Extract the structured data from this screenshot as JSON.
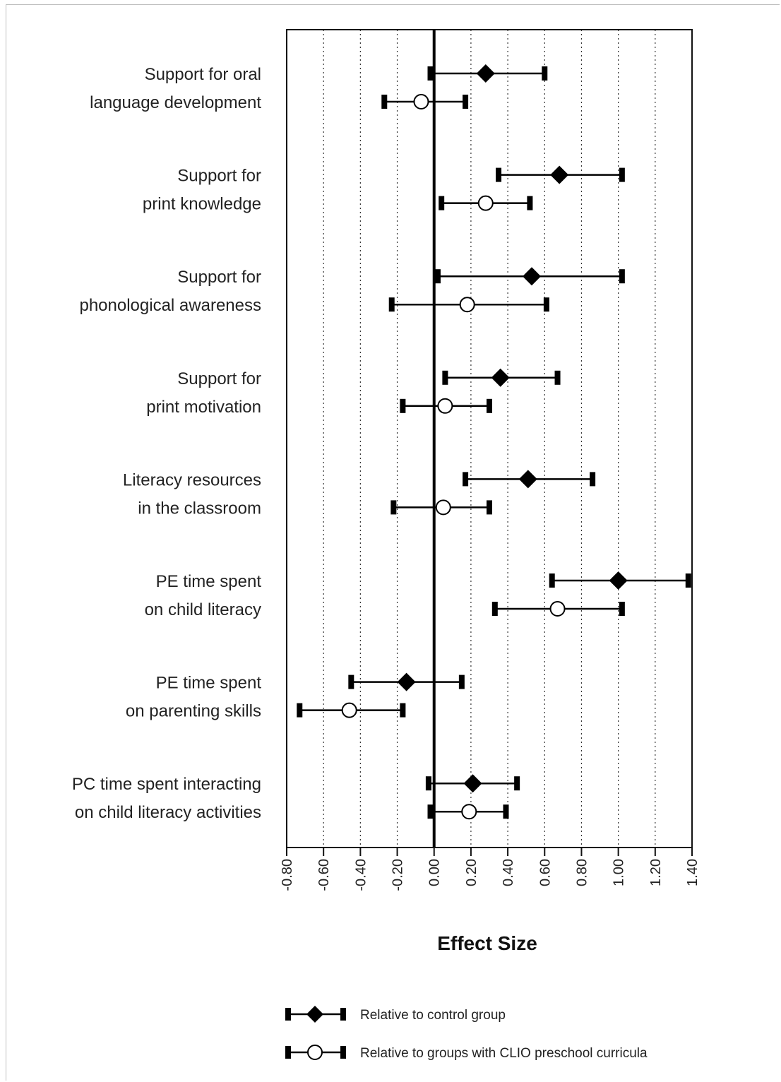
{
  "chart_data": {
    "type": "scatter",
    "subtype": "forest-plot",
    "title": "",
    "xlabel": "Effect Size",
    "ylabel": "",
    "xlim": [
      -0.8,
      1.4
    ],
    "xticks": [
      -0.8,
      -0.6,
      -0.4,
      -0.2,
      0.0,
      0.2,
      0.4,
      0.6,
      0.8,
      1.0,
      1.2,
      1.4
    ],
    "xtick_labels": [
      "-0.80",
      "-0.60",
      "-0.40",
      "-0.20",
      "0.00",
      "0.20",
      "0.40",
      "0.60",
      "0.80",
      "1.00",
      "1.20",
      "1.40"
    ],
    "grid": "vertical dotted",
    "legend_position": "bottom",
    "categories": [
      [
        "Support for oral",
        "language development"
      ],
      [
        "Support for",
        "print knowledge"
      ],
      [
        "Support for",
        "phonological awareness"
      ],
      [
        "Support for",
        "print motivation"
      ],
      [
        "Literacy resources",
        "in the classroom"
      ],
      [
        "PE time spent",
        "on child literacy"
      ],
      [
        "PE time spent",
        "on parenting skills"
      ],
      [
        "PC time spent interacting",
        "on child literacy activities"
      ]
    ],
    "series": [
      {
        "name": "Relative to control group",
        "marker": "filled-diamond",
        "color": "#000000",
        "points": [
          {
            "estimate": 0.28,
            "low": -0.02,
            "high": 0.6
          },
          {
            "estimate": 0.68,
            "low": 0.35,
            "high": 1.02
          },
          {
            "estimate": 0.53,
            "low": 0.02,
            "high": 1.02
          },
          {
            "estimate": 0.36,
            "low": 0.06,
            "high": 0.67
          },
          {
            "estimate": 0.51,
            "low": 0.17,
            "high": 0.86
          },
          {
            "estimate": 1.0,
            "low": 0.64,
            "high": 1.38
          },
          {
            "estimate": -0.15,
            "low": -0.45,
            "high": 0.15
          },
          {
            "estimate": 0.21,
            "low": -0.03,
            "high": 0.45
          }
        ]
      },
      {
        "name": "Relative to groups with CLIO preschool curricula",
        "marker": "open-circle",
        "color": "#000000",
        "points": [
          {
            "estimate": -0.07,
            "low": -0.27,
            "high": 0.17
          },
          {
            "estimate": 0.28,
            "low": 0.04,
            "high": 0.52
          },
          {
            "estimate": 0.18,
            "low": -0.23,
            "high": 0.61
          },
          {
            "estimate": 0.06,
            "low": -0.17,
            "high": 0.3
          },
          {
            "estimate": 0.05,
            "low": -0.22,
            "high": 0.3
          },
          {
            "estimate": 0.67,
            "low": 0.33,
            "high": 1.02
          },
          {
            "estimate": -0.46,
            "low": -0.73,
            "high": -0.17
          },
          {
            "estimate": 0.19,
            "low": -0.02,
            "high": 0.39
          }
        ]
      }
    ],
    "legend": [
      {
        "label": "Relative to control group",
        "marker": "filled-diamond"
      },
      {
        "label": "Relative to groups with CLIO preschool curricula",
        "marker": "open-circle"
      }
    ]
  }
}
